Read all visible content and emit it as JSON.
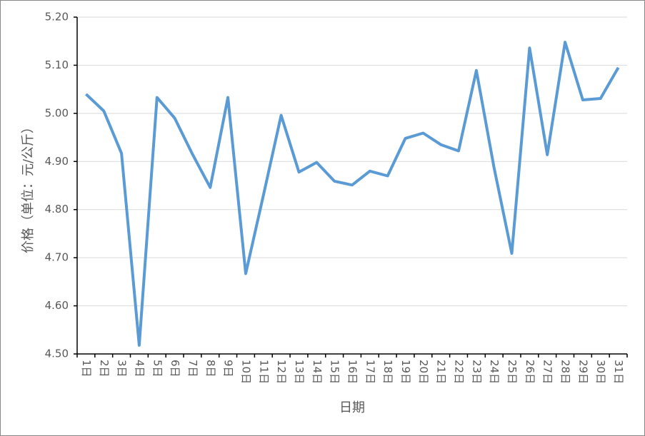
{
  "chart_data": {
    "type": "line",
    "y_label": "价格（单位：元/公斤）",
    "x_label": "日期",
    "categories": [
      "1日",
      "2日",
      "3日",
      "4日",
      "5日",
      "6日",
      "7日",
      "8日",
      "9日",
      "10日",
      "11日",
      "12日",
      "13日",
      "14日",
      "15日",
      "16日",
      "17日",
      "18日",
      "19日",
      "20日",
      "21日",
      "22日",
      "23日",
      "24日",
      "25日",
      "26日",
      "27日",
      "28日",
      "29日",
      "30日",
      "31日"
    ],
    "series": [
      {
        "name": "价格",
        "color": "#5b9bd5",
        "values": [
          5.04,
          5.005,
          4.917,
          4.518,
          5.033,
          4.99,
          4.915,
          4.846,
          5.033,
          4.667,
          4.83,
          4.996,
          4.878,
          4.898,
          4.859,
          4.851,
          4.88,
          4.87,
          4.948,
          4.959,
          4.935,
          4.922,
          5.089,
          4.887,
          4.709,
          5.136,
          4.914,
          5.148,
          5.028,
          5.031,
          5.095
        ]
      }
    ],
    "ylim": [
      4.5,
      5.2
    ],
    "yticks": [
      {
        "value": 4.5,
        "label": "4.50"
      },
      {
        "value": 4.6,
        "label": "4.60"
      },
      {
        "value": 4.7,
        "label": "4.70"
      },
      {
        "value": 4.8,
        "label": "4.80"
      },
      {
        "value": 4.9,
        "label": "4.90"
      },
      {
        "value": 5.0,
        "label": "5.00"
      },
      {
        "value": 5.1,
        "label": "5.10"
      },
      {
        "value": 5.2,
        "label": "5.20"
      }
    ],
    "grid": true
  }
}
